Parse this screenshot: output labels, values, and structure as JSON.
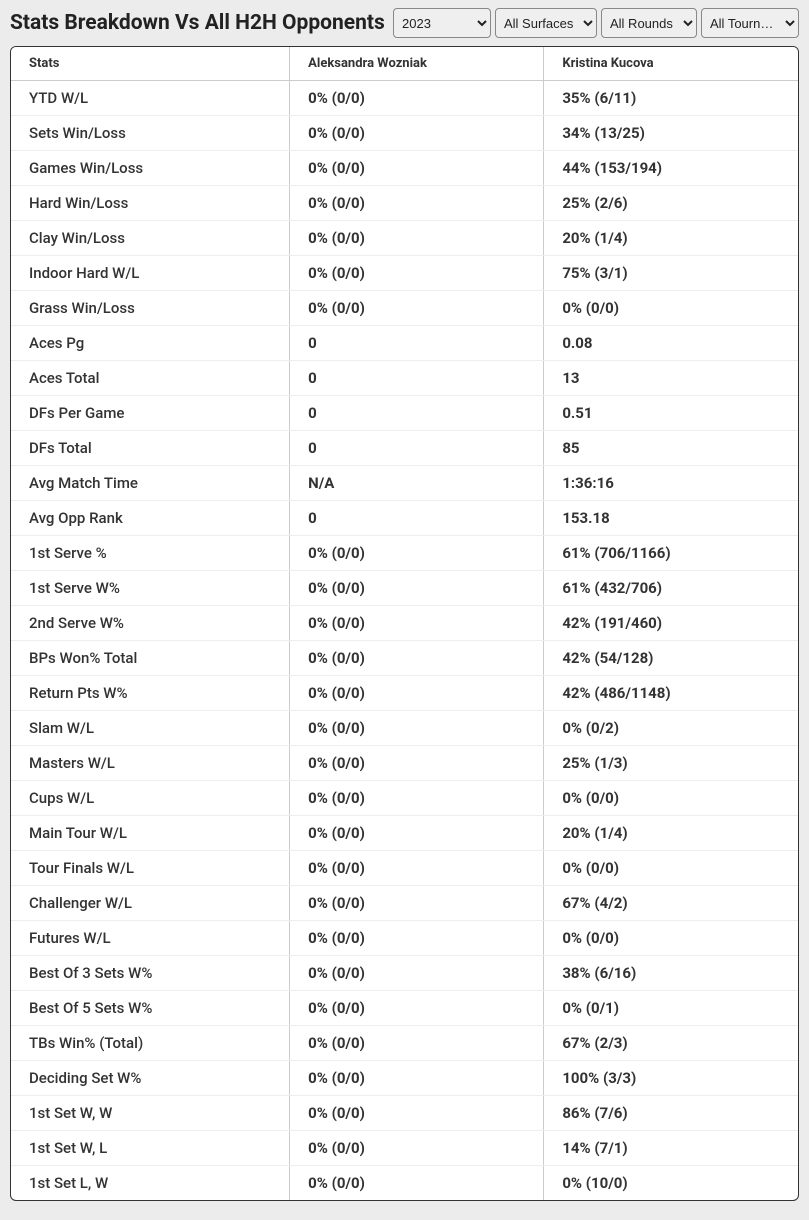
{
  "title": "Stats Breakdown Vs All H2H Opponents",
  "filters": {
    "year": "2023",
    "surface": "All Surfaces",
    "round": "All Rounds",
    "tournament": "All Tourn…"
  },
  "headers": {
    "stats": "Stats",
    "player1": "Aleksandra Wozniak",
    "player2": "Kristina Kucova"
  },
  "rows": [
    {
      "stat": "YTD W/L",
      "p1": "0% (0/0)",
      "p2": "35% (6/11)"
    },
    {
      "stat": "Sets Win/Loss",
      "p1": "0% (0/0)",
      "p2": "34% (13/25)"
    },
    {
      "stat": "Games Win/Loss",
      "p1": "0% (0/0)",
      "p2": "44% (153/194)"
    },
    {
      "stat": "Hard Win/Loss",
      "p1": "0% (0/0)",
      "p2": "25% (2/6)"
    },
    {
      "stat": "Clay Win/Loss",
      "p1": "0% (0/0)",
      "p2": "20% (1/4)"
    },
    {
      "stat": "Indoor Hard W/L",
      "p1": "0% (0/0)",
      "p2": "75% (3/1)"
    },
    {
      "stat": "Grass Win/Loss",
      "p1": "0% (0/0)",
      "p2": "0% (0/0)"
    },
    {
      "stat": "Aces Pg",
      "p1": "0",
      "p2": "0.08"
    },
    {
      "stat": "Aces Total",
      "p1": "0",
      "p2": "13"
    },
    {
      "stat": "DFs Per Game",
      "p1": "0",
      "p2": "0.51"
    },
    {
      "stat": "DFs Total",
      "p1": "0",
      "p2": "85"
    },
    {
      "stat": "Avg Match Time",
      "p1": "N/A",
      "p2": "1:36:16"
    },
    {
      "stat": "Avg Opp Rank",
      "p1": "0",
      "p2": "153.18"
    },
    {
      "stat": "1st Serve %",
      "p1": "0% (0/0)",
      "p2": "61% (706/1166)"
    },
    {
      "stat": "1st Serve W%",
      "p1": "0% (0/0)",
      "p2": "61% (432/706)"
    },
    {
      "stat": "2nd Serve W%",
      "p1": "0% (0/0)",
      "p2": "42% (191/460)"
    },
    {
      "stat": "BPs Won% Total",
      "p1": "0% (0/0)",
      "p2": "42% (54/128)"
    },
    {
      "stat": "Return Pts W%",
      "p1": "0% (0/0)",
      "p2": "42% (486/1148)"
    },
    {
      "stat": "Slam W/L",
      "p1": "0% (0/0)",
      "p2": "0% (0/2)"
    },
    {
      "stat": "Masters W/L",
      "p1": "0% (0/0)",
      "p2": "25% (1/3)"
    },
    {
      "stat": "Cups W/L",
      "p1": "0% (0/0)",
      "p2": "0% (0/0)"
    },
    {
      "stat": "Main Tour W/L",
      "p1": "0% (0/0)",
      "p2": "20% (1/4)"
    },
    {
      "stat": "Tour Finals W/L",
      "p1": "0% (0/0)",
      "p2": "0% (0/0)"
    },
    {
      "stat": "Challenger W/L",
      "p1": "0% (0/0)",
      "p2": "67% (4/2)"
    },
    {
      "stat": "Futures W/L",
      "p1": "0% (0/0)",
      "p2": "0% (0/0)"
    },
    {
      "stat": "Best Of 3 Sets W%",
      "p1": "0% (0/0)",
      "p2": "38% (6/16)"
    },
    {
      "stat": "Best Of 5 Sets W%",
      "p1": "0% (0/0)",
      "p2": "0% (0/1)"
    },
    {
      "stat": "TBs Win% (Total)",
      "p1": "0% (0/0)",
      "p2": "67% (2/3)"
    },
    {
      "stat": "Deciding Set W%",
      "p1": "0% (0/0)",
      "p2": "100% (3/3)"
    },
    {
      "stat": "1st Set W, W",
      "p1": "0% (0/0)",
      "p2": "86% (7/6)"
    },
    {
      "stat": "1st Set W, L",
      "p1": "0% (0/0)",
      "p2": "14% (7/1)"
    },
    {
      "stat": "1st Set L, W",
      "p1": "0% (0/0)",
      "p2": "0% (10/0)"
    }
  ]
}
